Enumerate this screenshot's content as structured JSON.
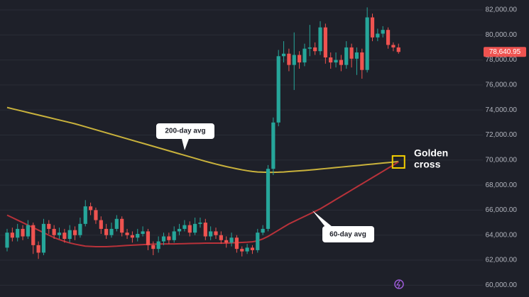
{
  "chart_data": {
    "type": "candlestick",
    "open": [
      63000,
      64200,
      63800,
      64500,
      63900,
      64800,
      63200,
      62600,
      64900,
      64500,
      64000,
      64200,
      63700,
      64400,
      64000,
      64900,
      66300,
      66000,
      65200,
      64500,
      64000,
      64500,
      65300,
      64200,
      64000,
      63800,
      64100,
      64300,
      63200,
      62900,
      63500,
      63900,
      63600,
      64300,
      64500,
      64800,
      64200,
      64900,
      65000,
      63900,
      64300,
      64000,
      63600,
      63400,
      63800,
      62900,
      62700,
      63000,
      62800,
      64200,
      64500,
      69300,
      73000,
      78300,
      78500,
      77600,
      78400,
      77800,
      78900,
      79000,
      78700,
      80600,
      78200,
      77800,
      78000,
      77600,
      79000,
      78100,
      78600,
      77200,
      81400,
      79800,
      80100,
      80400,
      79200,
      79000
    ],
    "high": [
      64500,
      64600,
      64900,
      64800,
      65200,
      65000,
      63500,
      65300,
      65200,
      64800,
      64600,
      64500,
      64800,
      64700,
      65400,
      66800,
      66600,
      66200,
      65500,
      64900,
      65000,
      65600,
      65500,
      64500,
      64300,
      64500,
      64700,
      64500,
      63500,
      63900,
      64200,
      64200,
      64700,
      64900,
      65200,
      65100,
      65400,
      65400,
      65300,
      64700,
      64600,
      64300,
      63900,
      64200,
      64000,
      63100,
      63300,
      63200,
      64500,
      64800,
      69600,
      73400,
      78800,
      79500,
      78900,
      80200,
      78700,
      79300,
      80800,
      79400,
      81100,
      80900,
      78600,
      78600,
      78400,
      79500,
      79300,
      79000,
      78900,
      82200,
      81700,
      80500,
      80700,
      80600,
      79400,
      79300
    ],
    "low": [
      62700,
      63500,
      63500,
      63600,
      63700,
      62500,
      62100,
      62400,
      64100,
      63700,
      63700,
      63400,
      63400,
      63600,
      63800,
      64700,
      65600,
      64900,
      64100,
      63700,
      63800,
      64300,
      63900,
      63700,
      63400,
      63500,
      63900,
      62800,
      62400,
      62600,
      63200,
      63300,
      63400,
      64000,
      64300,
      63900,
      64000,
      64600,
      63600,
      63600,
      63700,
      63300,
      63000,
      63100,
      62600,
      62300,
      62500,
      62500,
      62600,
      64000,
      64300,
      68800,
      72700,
      77800,
      77100,
      75600,
      77300,
      77500,
      78300,
      78400,
      78400,
      77700,
      77300,
      77400,
      77100,
      77300,
      77400,
      76800,
      76500,
      77000,
      79500,
      79500,
      79800,
      78900,
      78700,
      78500
    ],
    "close": [
      64200,
      63800,
      64500,
      63900,
      64800,
      63200,
      62600,
      64900,
      64500,
      64000,
      64200,
      63700,
      64400,
      64000,
      64900,
      66300,
      66000,
      65200,
      64500,
      64000,
      64500,
      65300,
      64200,
      64000,
      63800,
      64100,
      64300,
      63200,
      62900,
      63500,
      63900,
      63600,
      64300,
      64500,
      64800,
      64200,
      64900,
      65000,
      63900,
      64300,
      64000,
      63600,
      63400,
      63800,
      62900,
      62700,
      63000,
      62800,
      64200,
      64500,
      69300,
      73000,
      78300,
      78500,
      77600,
      78400,
      77800,
      78900,
      79000,
      78700,
      80600,
      78200,
      77800,
      78000,
      77600,
      79000,
      78100,
      78600,
      77200,
      81400,
      79800,
      80100,
      80400,
      79200,
      79000,
      78640.95
    ],
    "up_color": "#26a69a",
    "down_color": "#ef5350",
    "series": [
      {
        "name": "200-day avg",
        "color": "#c9b23c",
        "values": [
          74200,
          74100,
          74000,
          73900,
          73800,
          73700,
          73600,
          73500,
          73400,
          73300,
          73200,
          73100,
          73000,
          72900,
          72780,
          72660,
          72540,
          72420,
          72300,
          72180,
          72060,
          71940,
          71820,
          71700,
          71580,
          71460,
          71340,
          71220,
          71100,
          70980,
          70860,
          70740,
          70620,
          70500,
          70380,
          70260,
          70140,
          70020,
          69900,
          69790,
          69680,
          69580,
          69480,
          69390,
          69300,
          69220,
          69150,
          69090,
          69050,
          69030,
          69020,
          69020,
          69030,
          69050,
          69080,
          69110,
          69140,
          69170,
          69200,
          69240,
          69280,
          69320,
          69360,
          69400,
          69440,
          69480,
          69520,
          69560,
          69600,
          69640,
          69680,
          69720,
          69760,
          69800,
          69840,
          69880
        ]
      },
      {
        "name": "60-day avg",
        "color": "#b8323a",
        "values": [
          65600,
          65400,
          65200,
          65000,
          64800,
          64600,
          64400,
          64200,
          64000,
          63800,
          63650,
          63500,
          63380,
          63280,
          63200,
          63120,
          63100,
          63080,
          63080,
          63080,
          63100,
          63120,
          63150,
          63180,
          63200,
          63220,
          63240,
          63260,
          63280,
          63290,
          63300,
          63300,
          63300,
          63310,
          63320,
          63330,
          63340,
          63350,
          63360,
          63360,
          63360,
          63360,
          63360,
          63380,
          63400,
          63420,
          63440,
          63470,
          63550,
          63700,
          63900,
          64150,
          64400,
          64650,
          64900,
          65100,
          65300,
          65500,
          65700,
          65900,
          66100,
          66350,
          66600,
          66850,
          67100,
          67350,
          67600,
          67850,
          68100,
          68350,
          68600,
          68850,
          69100,
          69350,
          69600,
          69850
        ]
      }
    ],
    "last_price": {
      "value": 78640.95,
      "label": "78,640.95"
    },
    "annotation": [
      "Golden",
      "cross"
    ],
    "ylim": [
      59850,
      82790
    ],
    "yticks": [
      {
        "value": 60000,
        "label": "60,000.00"
      },
      {
        "value": 62000,
        "label": "62,000.00"
      },
      {
        "value": 64000,
        "label": "64,000.00"
      },
      {
        "value": 66000,
        "label": "66,000.00"
      },
      {
        "value": 68000,
        "label": "68,000.00"
      },
      {
        "value": 70000,
        "label": "70,000.00"
      },
      {
        "value": 72000,
        "label": "72,000.00"
      },
      {
        "value": 74000,
        "label": "74,000.00"
      },
      {
        "value": 76000,
        "label": "76,000.00"
      },
      {
        "value": 78000,
        "label": "78,000.00"
      },
      {
        "value": 80000,
        "label": "80,000.00"
      },
      {
        "value": 82000,
        "label": "82,000.00"
      }
    ],
    "grid": true
  }
}
